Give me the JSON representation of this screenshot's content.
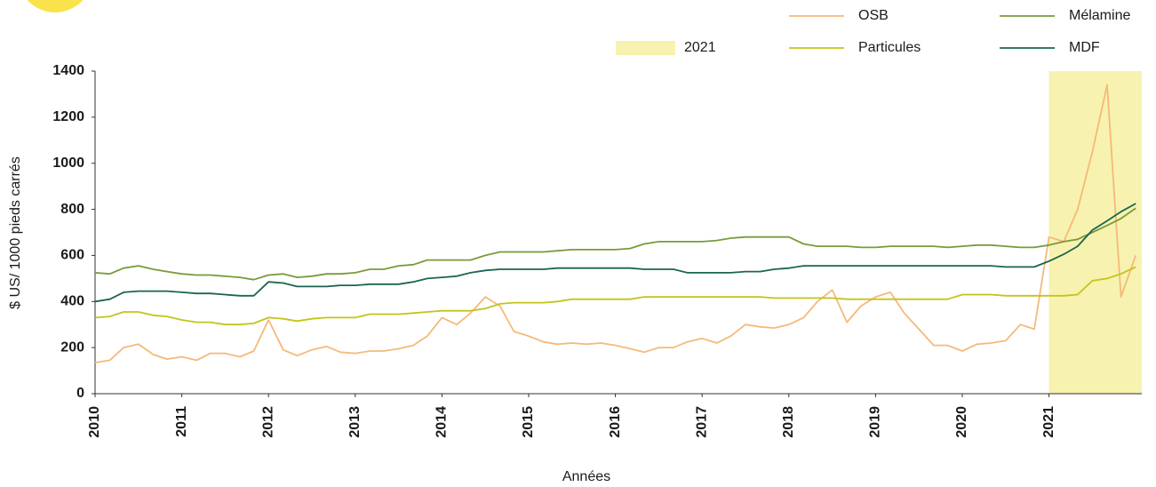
{
  "chart_data": {
    "type": "line",
    "y_label": "$ US/ 1000 pieds carrés",
    "x_label": "Années",
    "highlight": {
      "name": "2021",
      "color": "#f7f2b0",
      "x": [
        2021,
        2022.07
      ]
    },
    "xlim": [
      2010,
      2022.07
    ],
    "xticks": [
      2010,
      2011,
      2012,
      2013,
      2014,
      2015,
      2016,
      2017,
      2018,
      2019,
      2020,
      2021
    ],
    "ylim": [
      0,
      1400
    ],
    "yticks": [
      0,
      200,
      400,
      600,
      800,
      1000,
      1200,
      1400
    ],
    "grid": false,
    "x": [
      2010,
      2010.17,
      2010.33,
      2010.5,
      2010.67,
      2010.83,
      2011,
      2011.17,
      2011.33,
      2011.5,
      2011.67,
      2011.83,
      2012,
      2012.17,
      2012.33,
      2012.5,
      2012.67,
      2012.83,
      2013,
      2013.17,
      2013.33,
      2013.5,
      2013.67,
      2013.83,
      2014,
      2014.17,
      2014.33,
      2014.5,
      2014.67,
      2014.83,
      2015,
      2015.17,
      2015.33,
      2015.5,
      2015.67,
      2015.83,
      2016,
      2016.17,
      2016.33,
      2016.5,
      2016.67,
      2016.83,
      2017,
      2017.17,
      2017.33,
      2017.5,
      2017.67,
      2017.83,
      2018,
      2018.17,
      2018.33,
      2018.5,
      2018.67,
      2018.83,
      2019,
      2019.17,
      2019.33,
      2019.5,
      2019.67,
      2019.83,
      2020,
      2020.17,
      2020.33,
      2020.5,
      2020.67,
      2020.83,
      2021,
      2021.17,
      2021.33,
      2021.5,
      2021.67,
      2021.83,
      2022
    ],
    "series": [
      {
        "name": "OSB",
        "color": "#f5b97a",
        "values": [
          135,
          145,
          200,
          215,
          170,
          150,
          160,
          145,
          175,
          175,
          160,
          185,
          320,
          190,
          165,
          190,
          205,
          180,
          175,
          185,
          185,
          195,
          210,
          250,
          330,
          300,
          350,
          420,
          380,
          270,
          250,
          225,
          215,
          220,
          215,
          220,
          210,
          195,
          180,
          200,
          200,
          225,
          240,
          220,
          250,
          300,
          290,
          285,
          300,
          330,
          400,
          450,
          310,
          380,
          420,
          440,
          350,
          280,
          210,
          210,
          185,
          215,
          220,
          230,
          300,
          280,
          680,
          660,
          800,
          1050,
          1340,
          420,
          600
        ]
      },
      {
        "name": "Mélamine",
        "color": "#7a9a3c",
        "values": [
          525,
          520,
          545,
          555,
          540,
          530,
          520,
          515,
          515,
          510,
          505,
          495,
          515,
          520,
          505,
          510,
          520,
          520,
          525,
          540,
          540,
          555,
          560,
          580,
          580,
          580,
          580,
          600,
          615,
          615,
          615,
          615,
          620,
          625,
          625,
          625,
          625,
          630,
          650,
          660,
          660,
          660,
          660,
          665,
          675,
          680,
          680,
          680,
          680,
          650,
          640,
          640,
          640,
          635,
          635,
          640,
          640,
          640,
          640,
          635,
          640,
          645,
          645,
          640,
          635,
          635,
          645,
          660,
          670,
          700,
          730,
          760,
          805
        ]
      },
      {
        "name": "Particules",
        "color": "#c4c41a",
        "values": [
          330,
          335,
          355,
          355,
          340,
          335,
          320,
          310,
          310,
          300,
          300,
          305,
          330,
          325,
          315,
          325,
          330,
          330,
          330,
          345,
          345,
          345,
          350,
          355,
          360,
          360,
          360,
          370,
          390,
          395,
          395,
          395,
          400,
          410,
          410,
          410,
          410,
          410,
          420,
          420,
          420,
          420,
          420,
          420,
          420,
          420,
          420,
          415,
          415,
          415,
          415,
          415,
          410,
          410,
          410,
          410,
          410,
          410,
          410,
          410,
          430,
          430,
          430,
          425,
          425,
          425,
          425,
          425,
          430,
          490,
          500,
          520,
          550
        ]
      },
      {
        "name": "MDF",
        "color": "#1a6650",
        "values": [
          400,
          410,
          440,
          445,
          445,
          445,
          440,
          435,
          435,
          430,
          425,
          425,
          485,
          480,
          465,
          465,
          465,
          470,
          470,
          475,
          475,
          475,
          485,
          500,
          505,
          510,
          525,
          535,
          540,
          540,
          540,
          540,
          545,
          545,
          545,
          545,
          545,
          545,
          540,
          540,
          540,
          525,
          525,
          525,
          525,
          530,
          530,
          540,
          545,
          555,
          555,
          555,
          555,
          555,
          555,
          555,
          555,
          555,
          555,
          555,
          555,
          555,
          555,
          550,
          550,
          550,
          575,
          605,
          640,
          710,
          750,
          790,
          825
        ]
      }
    ]
  }
}
